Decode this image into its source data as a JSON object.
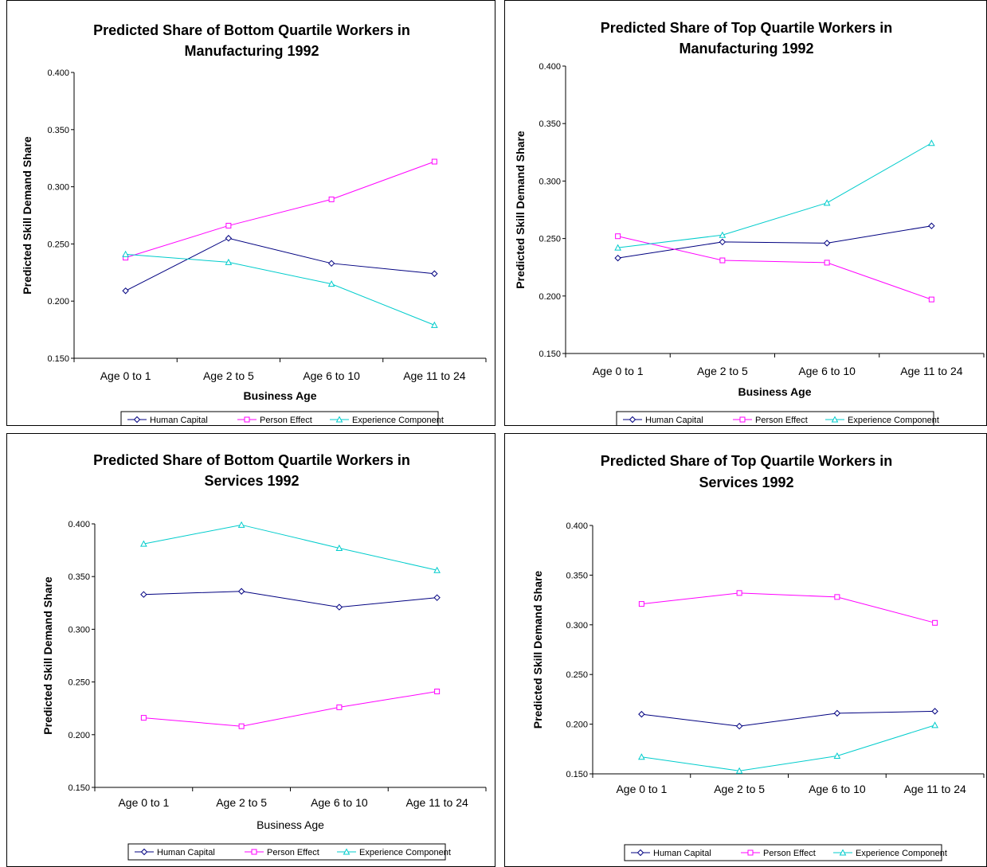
{
  "colors": {
    "human_capital": "#000080",
    "person_effect": "#FF00FF",
    "experience_component": "#00CCCC"
  },
  "chart_data": [
    {
      "type": "line",
      "title_lines": [
        "Predicted Share of Bottom Quartile Workers in",
        "Manufacturing 1992"
      ],
      "xlabel": "Business Age",
      "xlabel_bold": true,
      "ylabel": "Predicted Skill Demand Share",
      "ylim": [
        0.15,
        0.4
      ],
      "yticks": [
        "0.150",
        "0.200",
        "0.250",
        "0.300",
        "0.350",
        "0.400"
      ],
      "categories": [
        "Age 0 to 1",
        "Age 2 to 5",
        "Age 6 to 10",
        "Age 11 to 24"
      ],
      "legend_position": "bottom",
      "series": [
        {
          "name": "Human Capital",
          "marker": "diamond",
          "values": [
            0.209,
            0.255,
            0.233,
            0.224
          ]
        },
        {
          "name": "Person Effect",
          "marker": "square",
          "values": [
            0.238,
            0.266,
            0.289,
            0.322
          ]
        },
        {
          "name": "Experience Component",
          "marker": "triangle",
          "values": [
            0.241,
            0.234,
            0.215,
            0.179
          ]
        }
      ]
    },
    {
      "type": "line",
      "title_lines": [
        "Predicted Share of Top Quartile Workers in",
        "Manufacturing 1992"
      ],
      "xlabel": "Business Age",
      "xlabel_bold": true,
      "ylabel": "Predicted Skill Demand Share",
      "ylim": [
        0.15,
        0.4
      ],
      "yticks": [
        "0.150",
        "0.200",
        "0.250",
        "0.300",
        "0.350",
        "0.400"
      ],
      "categories": [
        "Age 0 to 1",
        "Age 2 to 5",
        "Age 6 to 10",
        "Age 11 to 24"
      ],
      "legend_position": "bottom",
      "series": [
        {
          "name": "Human Capital",
          "marker": "diamond",
          "values": [
            0.233,
            0.247,
            0.246,
            0.261
          ]
        },
        {
          "name": "Person Effect",
          "marker": "square",
          "values": [
            0.252,
            0.231,
            0.229,
            0.197
          ]
        },
        {
          "name": "Experience Component",
          "marker": "triangle",
          "values": [
            0.242,
            0.253,
            0.281,
            0.333
          ]
        }
      ]
    },
    {
      "type": "line",
      "title_lines": [
        "Predicted Share of Bottom Quartile Workers in",
        "Services 1992"
      ],
      "xlabel": "Business Age",
      "xlabel_bold": false,
      "ylabel": "Predicted Skill Demand Share",
      "ylim": [
        0.15,
        0.4
      ],
      "yticks": [
        "0.150",
        "0.200",
        "0.250",
        "0.300",
        "0.350",
        "0.400"
      ],
      "categories": [
        "Age 0 to 1",
        "Age 2 to 5",
        "Age 6 to 10",
        "Age 11 to 24"
      ],
      "legend_position": "bottom",
      "series": [
        {
          "name": "Human Capital",
          "marker": "diamond",
          "values": [
            0.333,
            0.336,
            0.321,
            0.33
          ]
        },
        {
          "name": "Person Effect",
          "marker": "square",
          "values": [
            0.216,
            0.208,
            0.226,
            0.241
          ]
        },
        {
          "name": "Experience Component",
          "marker": "triangle",
          "values": [
            0.381,
            0.399,
            0.377,
            0.356
          ]
        }
      ]
    },
    {
      "type": "line",
      "title_lines": [
        "Predicted Share of Top Quartile Workers in",
        "Services 1992"
      ],
      "xlabel": "",
      "xlabel_bold": false,
      "ylabel": "Predicted Skill Demand Share",
      "ylim": [
        0.15,
        0.4
      ],
      "yticks": [
        "0.150",
        "0.200",
        "0.250",
        "0.300",
        "0.350",
        "0.400"
      ],
      "categories": [
        "Age 0 to 1",
        "Age 2 to 5",
        "Age 6 to 10",
        "Age 11 to 24"
      ],
      "legend_position": "bottom",
      "series": [
        {
          "name": "Human Capital",
          "marker": "diamond",
          "values": [
            0.21,
            0.198,
            0.211,
            0.213
          ]
        },
        {
          "name": "Person Effect",
          "marker": "square",
          "values": [
            0.321,
            0.332,
            0.328,
            0.302
          ]
        },
        {
          "name": "Experience Component",
          "marker": "triangle",
          "values": [
            0.167,
            0.153,
            0.168,
            0.199
          ]
        }
      ]
    }
  ]
}
